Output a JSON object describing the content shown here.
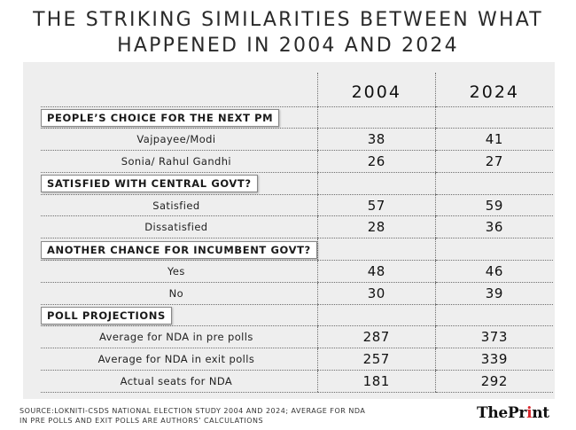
{
  "title": {
    "line1": "THE STRIKING SIMILARITIES BETWEEN WHAT",
    "line2": "HAPPENED IN 2004 AND 2024"
  },
  "chart_data": {
    "type": "table",
    "columns": [
      "2004",
      "2024"
    ],
    "sections": [
      {
        "heading": "PEOPLE’S CHOICE FOR THE NEXT PM",
        "rows": [
          {
            "label": "Vajpayee/Modi",
            "values": [
              38,
              41
            ]
          },
          {
            "label": "Sonia/ Rahul Gandhi",
            "values": [
              26,
              27
            ]
          }
        ]
      },
      {
        "heading": "SATISFIED WITH CENTRAL GOVT?",
        "rows": [
          {
            "label": "Satisfied",
            "values": [
              57,
              59
            ]
          },
          {
            "label": "Dissatisfied",
            "values": [
              28,
              36
            ]
          }
        ]
      },
      {
        "heading": "ANOTHER CHANCE FOR INCUMBENT GOVT?",
        "rows": [
          {
            "label": "Yes",
            "values": [
              48,
              46
            ]
          },
          {
            "label": "No",
            "values": [
              30,
              39
            ]
          }
        ]
      },
      {
        "heading": "POLL PROJECTIONS",
        "rows": [
          {
            "label": "Average for NDA in pre polls",
            "values": [
              287,
              373
            ]
          },
          {
            "label": "Average for NDA in exit polls",
            "values": [
              257,
              339
            ]
          },
          {
            "label": "Actual seats for NDA",
            "values": [
              181,
              292
            ]
          }
        ]
      }
    ]
  },
  "source": {
    "line1": "SOURCE:LOKNITI-CSDS NATIONAL ELECTION STUDY 2004 AND 2024; AVERAGE FOR NDA",
    "line2": "IN PRE POLLS AND EXIT POLLS ARE AUTHORS’ CALCULATIONS"
  },
  "brand": {
    "part1": "ThePr",
    "part2": "i",
    "part3": "nt"
  }
}
